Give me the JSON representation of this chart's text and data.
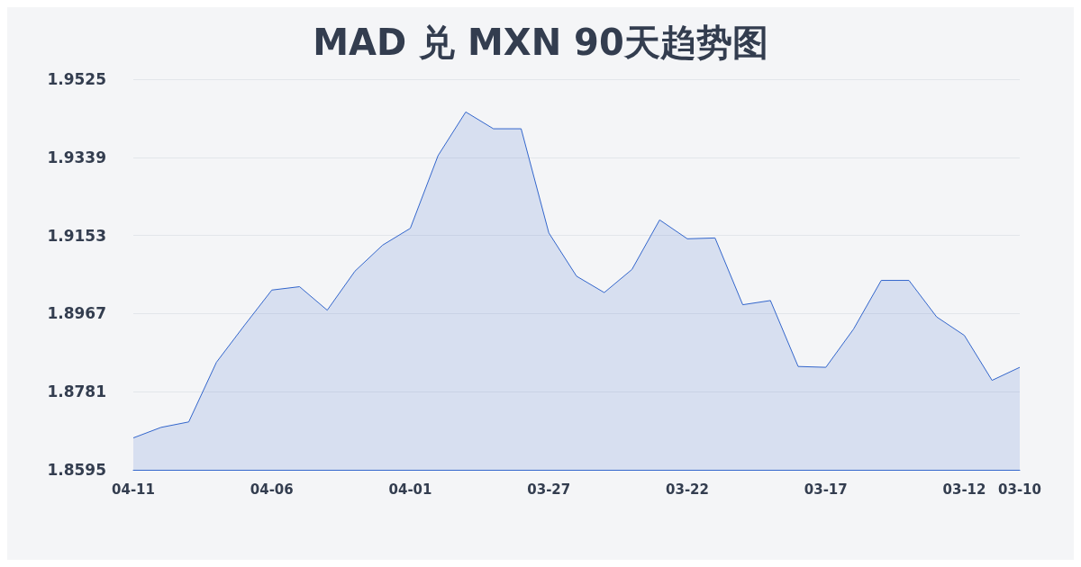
{
  "chart_data": {
    "type": "area",
    "title": "MAD 兑 MXN 90天趋势图",
    "categories": [
      "04-11",
      null,
      null,
      null,
      null,
      "04-06",
      null,
      null,
      null,
      null,
      "04-01",
      null,
      null,
      null,
      null,
      "03-27",
      null,
      null,
      null,
      null,
      "03-22",
      null,
      null,
      null,
      null,
      "03-17",
      null,
      null,
      null,
      null,
      "03-12",
      null,
      "03-10"
    ],
    "series": [
      {
        "color": "#3366cc",
        "values": [
          1.8671,
          1.8696,
          1.8709,
          1.8851,
          1.8938,
          1.9023,
          1.9031,
          1.8975,
          1.9068,
          1.913,
          1.917,
          1.9343,
          1.9447,
          1.9407,
          1.9407,
          1.9159,
          1.9056,
          1.9017,
          1.9072,
          1.919,
          1.9145,
          1.9147,
          1.8988,
          1.8998,
          1.8841,
          1.8839,
          1.893,
          1.9046,
          1.9046,
          1.8959,
          1.8915,
          1.8808,
          1.8839
        ]
      }
    ],
    "ylim": [
      1.8595,
      1.9525
    ],
    "yticks": [
      1.8595,
      1.8781,
      1.8967,
      1.9153,
      1.9339,
      1.9525
    ],
    "grid": "y",
    "marker": "none"
  }
}
